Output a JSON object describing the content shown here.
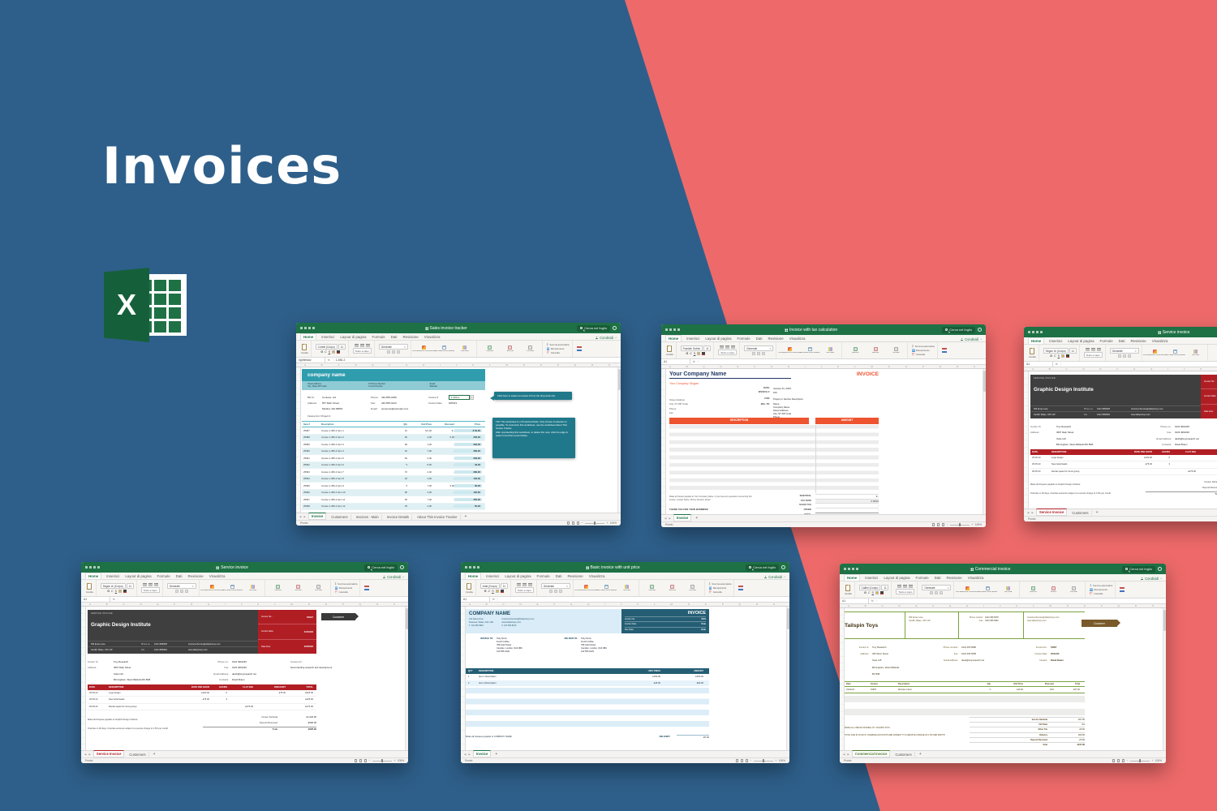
{
  "page": {
    "heading": "Invoices",
    "excel_logo_text": "X"
  },
  "colors": {
    "background_blue": "#2e5f8a",
    "background_coral": "#ee6a6a",
    "excel_green": "#1e7145",
    "tracker_teal": "#2f9dae",
    "tax_orange": "#ee5430",
    "service_red": "#b01e24",
    "basic_steel": "#255e74",
    "commercial_olive": "#7aa23c"
  },
  "chrome": {
    "search_placeholder": "Cerca nel foglio",
    "share_label": "Condividi",
    "collapse": "^",
    "ribbon_tabs": [
      "Home",
      "Inserisci",
      "Layout di pagina",
      "Formule",
      "Dati",
      "Revisione",
      "Visualizza"
    ],
    "paste_label": "Incolla",
    "font_size": "11",
    "bold": "G",
    "italic": "C",
    "underline": "S",
    "wrap_label": "Testo a capo",
    "number_format": "Generale",
    "dropdown": "▾",
    "style_labels": [
      "Formattazione condizionale",
      "Formatta come tabella",
      "Stili cella"
    ],
    "cell_labels": [
      "Inserisci",
      "Elimina",
      "Formato"
    ],
    "edit_labels": [
      "Somma automatica",
      "Riempimento",
      "Cancella"
    ],
    "sigma": "Σ",
    "fx": "fx",
    "col_letters": "A B C D E F G H I J K L M N O P Q R S T U V",
    "status_ready": "Pronto",
    "zoom_level": "100%",
    "zoom_out": "−",
    "zoom_in": "+",
    "nav_prev": "◀",
    "nav_next": "▶",
    "add_sheet": "+"
  },
  "windows": {
    "tracker": {
      "title": "Sales invoice tracker",
      "font_name": "Corbel (Corpo)",
      "name_box": "rigIntestaz",
      "formula": "1-456-2",
      "tab_accent": "#1e7145",
      "sheet_tabs": [
        "Invoice",
        "Customers",
        "Invoices - Main",
        "Invoice Details",
        "About This Invoice Tracker"
      ],
      "company": "company name",
      "addr_l1": "Street Address",
      "addr_l2": "City, State ZIP Code",
      "mid_l1": "P/ Phone Number",
      "mid_l2": "F/ Fax Number",
      "right_l1": "Email",
      "right_l2": "Website",
      "bill_to_label": "Bill To:",
      "bill_to": "Contoso, Ltd",
      "address_label": "Address:",
      "address1": "567 Main Street",
      "address2": "Medina, WA 98052",
      "phone_label": "Phone:",
      "phone": "432-555-0189",
      "fax_label": "Fax:",
      "fax": "432-555-0123",
      "email_label": "Email:",
      "email": "someone@example.com",
      "invnum_label": "Invoice #",
      "invnum": "1-456-2",
      "invdate_label": "Invoice Date",
      "invdate": "6/05/23",
      "invoice_for": "Invoice For: Project 2",
      "callout1": "Click here to select an invoice # from the drop-down list.",
      "tip": "TIP: This worksheet is in Protected Mode. Only Invoice # selection is possible. To customize this worksheet, use the worksheet About This Invoice Tracker.\nAfter unprotecting this worksheet, to delete this note, click the edge to select it and then press Delete.",
      "cols": [
        "Item #",
        "Description",
        "Qty",
        "Unit Price",
        "Discount",
        "Price"
      ],
      "rows": [
        [
          "25987",
          "Invoice 1-456-2 Item 1",
          "10",
          "$ 5,00",
          "$ -",
          "$ 50,00"
        ],
        [
          "25988",
          "Invoice 1-456-2 Item 2",
          "60",
          "4,00",
          "5,00",
          "235,00"
        ],
        [
          "25989",
          "Invoice 1-456-2 Item 3",
          "80",
          "4,00",
          "-",
          "320,00"
        ],
        [
          "25990",
          "Invoice 1-456-2 Item 4",
          "40",
          "7,00",
          "-",
          "280,00"
        ],
        [
          "25991",
          "Invoice 1-456-2 Item 5",
          "50",
          "4,00",
          "-",
          "200,00"
        ],
        [
          "25992",
          "Invoice 1-456-2 Item 6",
          "5",
          "8,00",
          "-",
          "40,00"
        ],
        [
          "25993",
          "Invoice 1-456-2 Item 7",
          "70",
          "4,00",
          "-",
          "280,00"
        ],
        [
          "25994",
          "Invoice 1-456-2 Item 8",
          "25",
          "4,00",
          "-",
          "100,00"
        ],
        [
          "25995",
          "Invoice 1-456-2 Item 9",
          "5",
          "7,00",
          "5,00",
          "30,00"
        ],
        [
          "25996",
          "Invoice 1-456-2 Item 10",
          "60",
          "2,00",
          "-",
          "120,00"
        ],
        [
          "25997",
          "Invoice 1-456-2 Item 11",
          "65",
          "7,00",
          "-",
          "455,00"
        ],
        [
          "25998",
          "Invoice 1-456-2 Item 12",
          "25",
          "2,00",
          "-",
          "50,00"
        ]
      ]
    },
    "tax": {
      "title": "Invoice with tax calculation",
      "font_name": "Franklin Gothic",
      "name_box": "A1",
      "formula": "",
      "tab_accent": "#1e7145",
      "sheet_tabs": [
        "Invoice"
      ],
      "company": "Your Company Name",
      "invoice_word": "INVOICE",
      "slogan": "Your Company Slogan",
      "addr": [
        "Street Address",
        "City, ST ZIP Code",
        "Phone",
        "Fax"
      ],
      "date_label": "DATE:",
      "date": "January 31, 20XX",
      "inv_label": "INVOICE #:",
      "inv": "100",
      "for_label": "FOR:",
      "for": "Project or Service Description",
      "billto_label": "BILL TO:",
      "billto": [
        "Name",
        "Company Name",
        "Street Address",
        "City, ST ZIP Code",
        "Phone"
      ],
      "desc_col": "DESCRIPTION",
      "amt_col": "AMOUNT",
      "subtotal_label": "SUBTOTAL",
      "subtotal": "$ -",
      "taxrate_label": "TAX RATE",
      "taxrate": "0.000%",
      "salestax_label": "SALES TAX",
      "salestax": "-",
      "other_label": "OTHER",
      "other": "-",
      "total_label": "TOTAL",
      "total": "$ -",
      "note": "Make all checks payable to Your Company Name. If you have any questions concerning this invoice, contact Name, Phone Number, Email.",
      "thanks": "THANK YOU FOR YOUR BUSINESS!"
    },
    "service": {
      "title": "Service invoice",
      "font_name": "Segoe UI (Corpo)",
      "name_box": "A1",
      "formula": "",
      "tab_accent": "#b01e24",
      "sheet_tabs": [
        "Service Invoice",
        "Customers"
      ],
      "header_small": "SERVICE INVOICE",
      "company": "Graphic Design Institute",
      "addr1": "456 Emae Lane",
      "addr2": "Cardiff, Wales, CF5 1JP",
      "phone_label": "Phone no.",
      "phone": "0124 4568905",
      "fax_label": "Fax",
      "fax": "0124 4568902",
      "email": "CustomerService@tailspintoys.com",
      "web": "www.tailspintoys.com",
      "invno_label": "Invoice No.:",
      "invno": "54647",
      "invdate_label": "Invoice Date:",
      "invdate": "01/10/23",
      "due_label": "Date Due:",
      "due": "22/05/23",
      "tag": "Customer",
      "invto_label": "Invoice To:",
      "invto": "Trey Research",
      "address_label": "Address:",
      "a1": "4567 Main Street",
      "a2": "Suite 123",
      "a3": "Birmingham, West Midlands B2 5DB",
      "p_label": "Phone no.:",
      "p": "0124 4961045",
      "f_label": "Fax:",
      "f": "0123 4961046",
      "e_label": "Email Address:",
      "e": "danib@treyresearch.net",
      "c_label": "Contacts:",
      "c": "David Braun",
      "for_label": "Invoice For:",
      "for": "New branding research and development",
      "cols": [
        "DATE",
        "DESCRIPTION",
        "RATE PER HOUR",
        "HOURS",
        "FLAT FEE",
        "DISCOUNT",
        "TOTAL"
      ],
      "rows": [
        [
          "25.05.23",
          "Logo design",
          "£100.00",
          "6",
          "",
          "£75.00",
          "£525.00"
        ],
        [
          "25.05.23",
          "New letterheads",
          "£75.00",
          "3",
          "",
          "",
          "£225.00"
        ],
        [
          "25.05.23",
          "Rental space for focus group",
          "",
          "",
          "£275.00",
          "",
          "£275.00"
        ]
      ],
      "sub_label": "Invoice Subtotal",
      "sub": "£1,025.00",
      "dep_label": "Deposit Received",
      "dep": "-£500.00",
      "tot_label": "Total",
      "tot": "£525.00",
      "note1": "Make all cheques payable to Graphic Design Institute.",
      "note2": "Total due in 30 days. Overdue accounts subject to a service charge of 1.5% per month."
    },
    "basic": {
      "title": "Basic invoice with unit price",
      "font_name": "Arial (Corpo)",
      "name_box": "A1",
      "formula": "",
      "tab_accent": "#1e7145",
      "sheet_tabs": [
        "Invoice"
      ],
      "company": "COMPANY NAME",
      "a1": "123 Abbey Row",
      "a2": "Swansea, Wales, SA1 1NU",
      "a3": "T. 123 456 8910",
      "b1": "CustomerService@Tailspintoys.com",
      "b2": "www.tailspintoys.com",
      "b3": "F. 123 456 8120",
      "invoice_word": "INVOICE",
      "invno_label": "Invoice No.:",
      "invno": "1001",
      "invdate_label": "Invoice Date:",
      "invdate": "Date",
      "due_label": "Due Date:",
      "due": "Date",
      "invto_label": "INVOICE TO:",
      "delto_label": "DELIVER TO:",
      "to_lines": [
        "Toby Nixon",
        "Fourth Coffee",
        "789 Gold Street",
        "Camden, London, N1Z 3BC",
        "123 555 0129"
      ],
      "cols": [
        "QTY",
        "DESCRIPTION",
        "UNIT PRICE",
        "AMOUNT"
      ],
      "rows": [
        [
          "1",
          "Item 1 Description",
          "£150.00",
          "£150.00"
        ],
        [
          "2",
          "Item 2 Description",
          "£45.00",
          "£90.00"
        ]
      ],
      "note": "Make all cheques payable to COMPANY NAME",
      "delivery_label": "DELIVERY",
      "delivery": "£5.00"
    },
    "commercial": {
      "title": "Commercial invoice",
      "font_name": "Calibri (Corpo)",
      "name_box": "A1",
      "formula": "",
      "tab_accent": "#4e7d2e",
      "sheet_tabs": [
        "Commercial Invoice",
        "Customers"
      ],
      "company": "Tailspin Toys",
      "a1": "456 Emae Lane",
      "a2": "Cardiff, Wales, CF5 1JP",
      "p_label": "Phone number:",
      "p": "0124 456 5678",
      "f_label": "Fax:",
      "f": "0124 456 5902",
      "e1": "CustomerService@tailspintoys.com",
      "e2": "www.tailspintoys.com",
      "tag": "Customer",
      "invto_label": "Invoice to:",
      "invto": "Trey Research",
      "addr_label": "Address:",
      "ad1": "456 Silver Street",
      "ad2": "Suite 125",
      "ad3": "Birmingham, West Midlands",
      "ad4": "B2 5DB",
      "pn_label": "Phone number:",
      "pn": "0124 456 5680",
      "fx_label": "Fax:",
      "fx": "0124 456 5058",
      "em_label": "Email address:",
      "em": "dana@treyresearch.net",
      "no_label": "Invoice No.:",
      "no": "54657",
      "date_label": "Invoice Date:",
      "date": "23/11/23",
      "c_label": "Contact:",
      "c": "David Braun",
      "cols": [
        "Date",
        "Invoice",
        "Description",
        "Qty",
        "Unit Price",
        "Discount",
        "Total"
      ],
      "rows": [
        [
          "23/11/23",
          "54657",
          "Wooden trains",
          "4",
          "£16.00",
          "10%",
          "£57.60"
        ]
      ],
      "sub_label": "Invoice Subtotal",
      "sub": "£57.60",
      "vat_label": "VAT Rate",
      "vat": "0%",
      "otax_label": "Other Tax",
      "otax": "£5.00",
      "del_label": "Delivery",
      "del": "£50.00",
      "dep_label": "Deposit Received",
      "dep": "-£5.00",
      "tot_label": "Total",
      "tot": "£107.60",
      "note1": "MAKE ALL CHECKS PAYABLE TO: TAILSPIN TOYS",
      "note2": "TOTAL DUE IN 30 DAYS. OVERDUE ACCOUNTS ARE SUBJECT TO A SERVICE CHARGE OF 1.5% PER MONTH."
    }
  }
}
